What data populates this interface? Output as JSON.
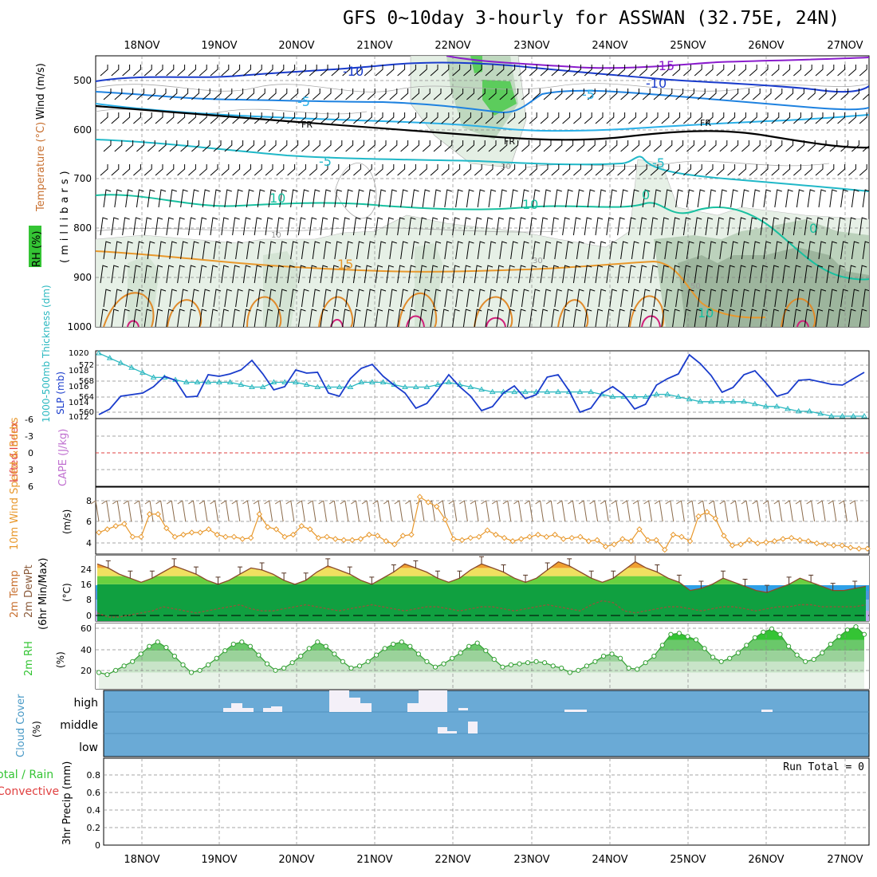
{
  "title": "GFS 0~10day 3-hourly for ASSWAN (32.75E, 24N)",
  "dates": [
    "18NOV",
    "19NOV",
    "20NOV",
    "21NOV",
    "22NOV",
    "23NOV",
    "24NOV",
    "25NOV",
    "26NOV",
    "27NOV"
  ],
  "panels": {
    "upper": {
      "label_rh": "RH (%)",
      "label_temp": "Temperature (°C)",
      "label_wind": "Wind (m/s)",
      "ylabel": "(millibars)",
      "yticks": [
        "500",
        "600",
        "700",
        "800",
        "900",
        "1000"
      ],
      "contour_labels": [
        "-15",
        "-10",
        "-10",
        "-5",
        "-5",
        "FR",
        "FR",
        "FR",
        "-5",
        "-5",
        "10",
        "10",
        "0",
        "0",
        "15",
        "10",
        "30",
        "10",
        "30",
        "50"
      ]
    },
    "slp": {
      "label_thick": "1000-500mb Thickness (dm)",
      "label_slp": "SLP (mb)",
      "yticks_left": [
        "572",
        "568",
        "564",
        "560"
      ],
      "yticks_right": [
        "1020",
        "1018",
        "1016",
        "1014",
        "1012"
      ]
    },
    "li": {
      "label_li": "Lifted Index",
      "label_cape": "CAPE (J/kg)",
      "yticks": [
        "-6",
        "-3",
        "0",
        "3",
        "6"
      ]
    },
    "wind10": {
      "label": "10m Wind Speed & Barbs",
      "unit": "(m/s)",
      "yticks": [
        "8",
        "6",
        "4"
      ]
    },
    "temp2m": {
      "label1": "2m Temp",
      "label2": "2m DewPt",
      "label3": "(6hr Min/Max)",
      "unit": "(°C)",
      "yticks": [
        "24",
        "16",
        "8",
        "0"
      ]
    },
    "rh2m": {
      "label": "2m RH",
      "unit": "(%)",
      "yticks": [
        "60",
        "40",
        "20"
      ]
    },
    "cloud": {
      "label": "Cloud Cover",
      "unit": "(%)",
      "levels": [
        "high",
        "middle",
        "low"
      ]
    },
    "precip": {
      "label_total": "Total / Rain",
      "label_conv": "Convective",
      "label_y": "3hr Precip (mm)",
      "run_total": "Run Total = 0",
      "yticks": [
        "0.8",
        "0.6",
        "0.4",
        "0.2",
        "0"
      ]
    }
  },
  "colors": {
    "bg_blue": "#6aaad6",
    "slp_line": "#1a3ccc",
    "thick_line": "#2ab8c0",
    "wind_line": "#e8982c",
    "rh_green": "#34c434",
    "temp_orange": "#e8982c",
    "cloud_white": "#f4f0f8"
  },
  "chart_data": [
    {
      "type": "line",
      "name": "SLP",
      "ylim": [
        1012,
        1020.5
      ],
      "values": [
        1012.5,
        1013.2,
        1014.8,
        1015.0,
        1015.2,
        1016.0,
        1017.3,
        1016.8,
        1014.7,
        1014.8,
        1017.5,
        1017.3,
        1017.6,
        1018.1,
        1019.3,
        1017.6,
        1015.6,
        1016.0,
        1018.1,
        1017.7,
        1017.8,
        1015.2,
        1014.8,
        1017.0,
        1018.3,
        1018.8,
        1017.3,
        1016.2,
        1015.2,
        1013.3,
        1013.9,
        1015.6,
        1017.5,
        1016.0,
        1014.8,
        1013.0,
        1013.5,
        1015.2,
        1016.1,
        1014.5,
        1015.0,
        1017.2,
        1017.5,
        1015.5,
        1012.8,
        1013.3,
        1015.2,
        1016.0,
        1015.0,
        1013.2,
        1013.8,
        1016.2,
        1017.0,
        1017.6,
        1020.0,
        1018.9,
        1017.4,
        1015.3,
        1015.9,
        1017.5,
        1018.0,
        1016.5,
        1014.8,
        1015.2,
        1016.8,
        1016.9,
        1016.6,
        1016.3,
        1016.2,
        1017.0,
        1017.8
      ]
    },
    {
      "type": "line",
      "name": "Thickness",
      "ylim": [
        559.5,
        573.5
      ],
      "values": [
        573,
        572,
        571,
        570,
        569,
        568,
        568,
        567.5,
        567,
        567,
        567,
        567,
        567,
        566.5,
        566,
        566,
        567,
        567,
        567,
        566.5,
        566,
        566,
        566,
        566,
        567,
        567,
        567,
        566.5,
        566,
        566,
        566,
        566.5,
        567,
        566.5,
        566,
        565.5,
        565,
        565,
        565,
        565,
        565,
        565,
        565,
        565,
        565,
        565,
        564.5,
        564,
        564,
        564,
        564,
        564.5,
        564.5,
        564,
        563.5,
        563,
        563,
        563,
        563,
        563,
        562.5,
        562,
        562,
        561.5,
        561,
        561,
        560.5,
        560,
        560,
        560,
        560
      ]
    },
    {
      "type": "line",
      "name": "10m Wind Speed",
      "ylim": [
        3,
        9.2
      ],
      "values": [
        5.0,
        5.3,
        5.6,
        5.8,
        4.6,
        4.6,
        6.7,
        6.7,
        5.4,
        4.6,
        4.8,
        5.0,
        5.0,
        5.3,
        4.8,
        4.6,
        4.6,
        4.4,
        4.5,
        6.7,
        5.5,
        5.3,
        4.6,
        4.8,
        5.6,
        5.3,
        4.5,
        4.6,
        4.4,
        4.3,
        4.3,
        4.4,
        4.8,
        4.7,
        4.2,
        3.9,
        4.7,
        4.8,
        8.3,
        7.8,
        7.4,
        6.2,
        4.4,
        4.3,
        4.5,
        4.6,
        5.2,
        4.8,
        4.5,
        4.2,
        4.4,
        4.6,
        4.8,
        4.6,
        4.8,
        4.4,
        4.5,
        4.6,
        4.2,
        4.3,
        3.7,
        3.9,
        4.4,
        4.2,
        5.3,
        4.3,
        4.3,
        3.4,
        4.8,
        4.6,
        4.2,
        6.5,
        6.9,
        6.3,
        4.7,
        3.8,
        3.9,
        4.3,
        4.0,
        4.1,
        4.2,
        4.4,
        4.5,
        4.3,
        4.2,
        4.0,
        3.9,
        3.8,
        3.8,
        3.6,
        3.5,
        3.5
      ]
    },
    {
      "type": "area",
      "name": "2m Temp",
      "ylim": [
        -2,
        30
      ],
      "values": [
        26,
        24,
        21,
        19,
        17,
        19,
        22,
        25,
        23,
        21,
        18,
        16,
        18,
        21,
        24,
        23,
        21,
        18,
        16,
        18,
        22,
        25,
        23,
        21,
        18,
        16,
        19,
        22,
        26,
        24,
        22,
        19,
        17,
        19,
        23,
        26,
        24,
        22,
        19,
        17,
        19,
        23,
        27,
        25,
        22,
        19,
        17,
        19,
        23,
        27,
        24,
        22,
        19,
        17,
        13,
        14,
        16,
        19,
        17,
        15,
        13,
        12,
        14,
        16,
        19,
        17,
        15,
        13,
        13,
        14,
        15
      ]
    },
    {
      "type": "line",
      "name": "2m DewPt",
      "ylim": [
        -2,
        30
      ],
      "values": [
        2,
        0,
        0,
        1,
        2,
        3,
        5,
        4,
        3,
        2,
        3,
        4,
        5,
        6,
        4,
        3,
        3,
        4,
        5,
        6,
        5,
        4,
        3,
        4,
        5,
        6,
        5,
        4,
        3,
        4,
        5,
        5,
        4,
        3,
        4,
        5,
        5,
        4,
        3,
        4,
        5,
        6,
        5,
        4,
        3,
        6,
        8,
        7,
        3,
        2,
        3,
        4,
        5,
        5,
        4,
        3,
        4,
        5,
        5,
        4,
        3,
        4,
        5,
        5,
        6,
        6,
        5,
        5,
        5,
        5,
        6
      ]
    },
    {
      "type": "area",
      "name": "2m RH",
      "ylim": [
        5,
        65
      ],
      "values": [
        20,
        18,
        22,
        26,
        30,
        37,
        44,
        48,
        43,
        35,
        27,
        20,
        22,
        27,
        33,
        40,
        46,
        48,
        44,
        36,
        28,
        22,
        24,
        29,
        35,
        42,
        48,
        44,
        37,
        30,
        24,
        26,
        30,
        36,
        42,
        46,
        48,
        44,
        37,
        30,
        25,
        28,
        33,
        38,
        44,
        47,
        40,
        32,
        25,
        27,
        28,
        29,
        30,
        29,
        26,
        24,
        20,
        22,
        26,
        30,
        35,
        37,
        33,
        24,
        23,
        29,
        35,
        45,
        55,
        56,
        53,
        50,
        42,
        34,
        30,
        33,
        38,
        45,
        52,
        57,
        60,
        55,
        44,
        36,
        30,
        32,
        38,
        46,
        53,
        59,
        62,
        55
      ]
    }
  ]
}
